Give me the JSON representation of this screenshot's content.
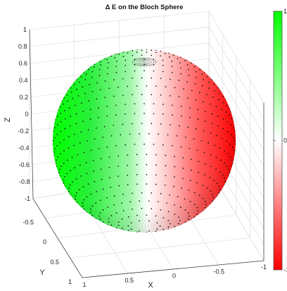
{
  "chart_data": {
    "type": "surface",
    "title": "Δ E on the Bloch Sphere",
    "xlabel": "X",
    "ylabel": "Y",
    "zlabel": "Z",
    "xlim": [
      -1,
      1
    ],
    "ylim": [
      -1,
      1
    ],
    "zlim": [
      -1,
      1
    ],
    "x_ticks": [
      "1",
      "0.5",
      "0",
      "-0.5",
      "-1"
    ],
    "y_ticks": [
      "-0.5",
      "0",
      "0.5",
      "1"
    ],
    "z_ticks": [
      "1",
      "0.8",
      "0.6",
      "0.4",
      "0.2",
      "0",
      "-0.2",
      "-0.4",
      "-0.6",
      "-0.8",
      "-1"
    ],
    "colorbar": {
      "ticks": [
        "1",
        "0",
        "-1"
      ],
      "colormap": [
        "#ff0000",
        "#ffffff",
        "#00ff00"
      ],
      "range": [
        -1,
        1
      ]
    },
    "sphere_radius": 1,
    "grid": true,
    "markers": "black dots"
  }
}
